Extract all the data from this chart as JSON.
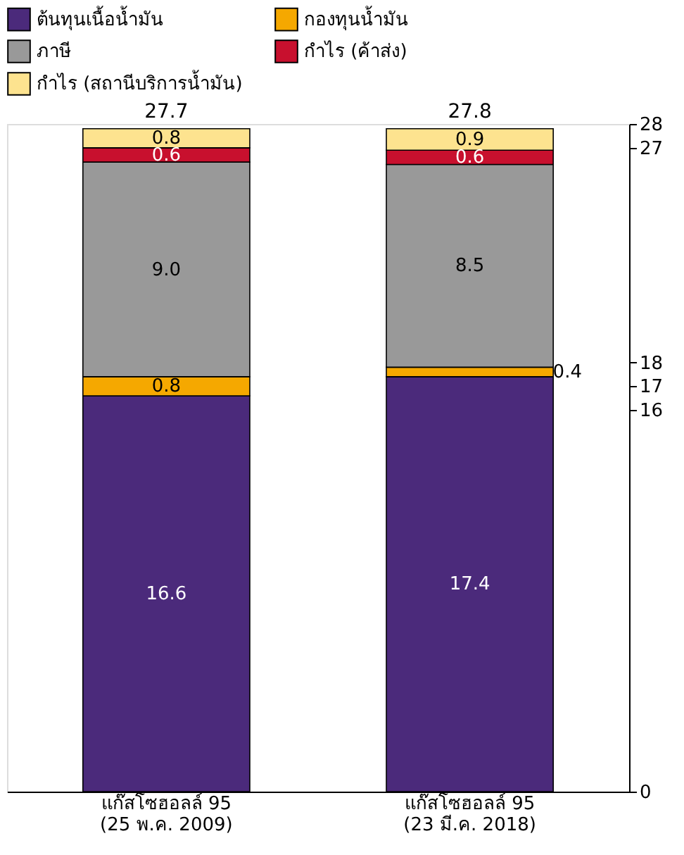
{
  "chart_data": {
    "type": "bar",
    "stacked": true,
    "categories": [
      "แก๊สโซฮอลล์ 95\n(25 พ.ค. 2009)",
      "แก๊สโซฮอลล์ 95\n(23 มี.ค. 2018)"
    ],
    "series": [
      {
        "name": "ต้นทุนเนื้อน้ำมัน",
        "color": "#4b2a7b",
        "values": [
          16.6,
          17.4
        ]
      },
      {
        "name": "กองทุนน้ำมัน",
        "color": "#f5a800",
        "values": [
          0.8,
          0.4
        ]
      },
      {
        "name": "ภาษี",
        "color": "#999999",
        "values": [
          9.0,
          8.5
        ],
        "value_labels": [
          "9.0",
          "8.5"
        ]
      },
      {
        "name": "กำไร (ค้าส่ง)",
        "color": "#c8102e",
        "values": [
          0.6,
          0.6
        ]
      },
      {
        "name": "กำไร (สถานีบริการน้ำมัน)",
        "color": "#fde38f",
        "values": [
          0.8,
          0.9
        ]
      }
    ],
    "totals": [
      "27.7",
      "27.8"
    ],
    "data_labels": true,
    "ylim": [
      0,
      28
    ],
    "yticks": [
      0,
      16,
      17,
      18,
      27,
      28
    ],
    "grid": false,
    "legend": "top"
  }
}
